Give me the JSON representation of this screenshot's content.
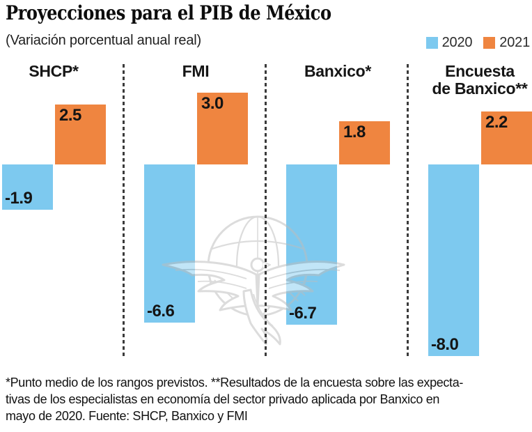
{
  "header": {
    "title": "Proyecciones para el PIB de México",
    "subtitle": "(Variación porcentual anual real)"
  },
  "chart_data": {
    "type": "bar",
    "title": "Proyecciones para el PIB de México",
    "subtitle": "(Variación porcentual anual real)",
    "unit": "% anual real",
    "categories": [
      "SHCP*",
      "FMI",
      "Banxico*",
      "Encuesta\nde Banxico**"
    ],
    "series": [
      {
        "name": "2020",
        "color": "#7DC9EF",
        "values": [
          -1.9,
          -6.6,
          -6.7,
          -8.0
        ]
      },
      {
        "name": "2021",
        "color": "#EF8540",
        "values": [
          2.5,
          3.0,
          1.8,
          2.2
        ]
      }
    ],
    "baseline": 0,
    "ylim": [
      -8.5,
      3.5
    ],
    "grid": false,
    "value_labels": true,
    "legend_position": "top-right",
    "group_divider_style": "dashed"
  },
  "watermark": {
    "icon": "eagle-over-globe",
    "color": "#bdbdbd"
  },
  "footnote": {
    "line1": "*Punto medio de los rangos previstos. **Resultados de la encuesta sobre las expecta-",
    "line2": "tivas de los especialistas en economía del sector privado aplicada por Banxico en",
    "line3": "mayo de 2020. Fuente: SHCP, Banxico y FMI"
  }
}
